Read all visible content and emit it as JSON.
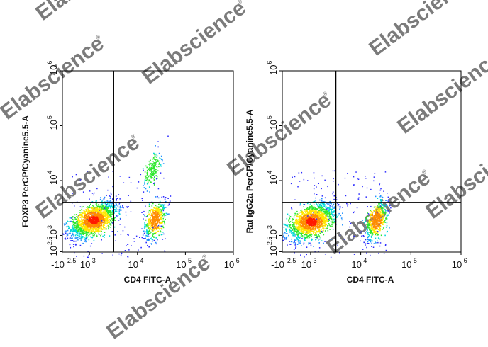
{
  "watermark": {
    "text": "Elabscience",
    "mark": "®"
  },
  "colors": {
    "density_scale": [
      "#2b2bff",
      "#1e90ff",
      "#00d8d8",
      "#2ee82e",
      "#ffe600",
      "#ff8c00",
      "#ff1a00"
    ],
    "axis": "#000000",
    "gate": "#000000"
  },
  "chart_data": [
    {
      "type": "scatter",
      "subtype": "flow-cytometry-density-dot-plot",
      "xlabel": "CD4 FITC-A",
      "ylabel": "FOXP3 PerCP/Cyanine5.5-A",
      "x_scale": "biexponential",
      "y_scale": "biexponential",
      "xlim": [
        -300,
        1000000
      ],
      "ylim": [
        300,
        1000000
      ],
      "x_ticks": [
        {
          "value": -316,
          "base": "-10",
          "exp": "2.5"
        },
        {
          "value": 1000,
          "base": "10",
          "exp": "3"
        },
        {
          "value": 10000,
          "base": "10",
          "exp": "4"
        },
        {
          "value": 100000,
          "base": "10",
          "exp": "5"
        },
        {
          "value": 1000000,
          "base": "10",
          "exp": "6"
        }
      ],
      "y_ticks": [
        {
          "value": 316,
          "base": "10",
          "exp": "2.5"
        },
        {
          "value": 1000,
          "base": "10",
          "exp": "3"
        },
        {
          "value": 10000,
          "base": "10",
          "exp": "4"
        },
        {
          "value": 100000,
          "base": "10",
          "exp": "5"
        },
        {
          "value": 1000000,
          "base": "10",
          "exp": "6"
        }
      ],
      "quadrant_gate": {
        "x": 3200,
        "y": 4000
      },
      "populations": [
        {
          "name": "CD4- FOXP3-",
          "x_center": 1200,
          "y_center": 1950,
          "density": "high"
        },
        {
          "name": "CD4+ FOXP3-",
          "x_center": 23000,
          "y_center": 1950,
          "density": "medium"
        },
        {
          "name": "CD4+ FOXP3+",
          "x_center": 20000,
          "y_center": 16000,
          "density": "low"
        }
      ],
      "grid": false,
      "legend": "none"
    },
    {
      "type": "scatter",
      "subtype": "flow-cytometry-density-dot-plot",
      "xlabel": "CD4 FITC-A",
      "ylabel": "Rat IgG2a PerCP/Cyanine5.5-A",
      "x_scale": "biexponential",
      "y_scale": "biexponential",
      "xlim": [
        -300,
        1000000
      ],
      "ylim": [
        300,
        1000000
      ],
      "x_ticks": [
        {
          "value": -316,
          "base": "-10",
          "exp": "2.5"
        },
        {
          "value": 1000,
          "base": "10",
          "exp": "3"
        },
        {
          "value": 10000,
          "base": "10",
          "exp": "4"
        },
        {
          "value": 100000,
          "base": "10",
          "exp": "5"
        },
        {
          "value": 1000000,
          "base": "10",
          "exp": "6"
        }
      ],
      "y_ticks": [
        {
          "value": 316,
          "base": "10",
          "exp": "2.5"
        },
        {
          "value": 1000,
          "base": "10",
          "exp": "3"
        },
        {
          "value": 10000,
          "base": "10",
          "exp": "4"
        },
        {
          "value": 100000,
          "base": "10",
          "exp": "5"
        },
        {
          "value": 1000000,
          "base": "10",
          "exp": "6"
        }
      ],
      "quadrant_gate": {
        "x": 3200,
        "y": 4000
      },
      "populations": [
        {
          "name": "CD4- IgG2a-",
          "x_center": 1000,
          "y_center": 1800,
          "density": "high"
        },
        {
          "name": "CD4+ IgG2a-",
          "x_center": 20000,
          "y_center": 1950,
          "density": "medium"
        }
      ],
      "grid": false,
      "legend": "none"
    }
  ]
}
